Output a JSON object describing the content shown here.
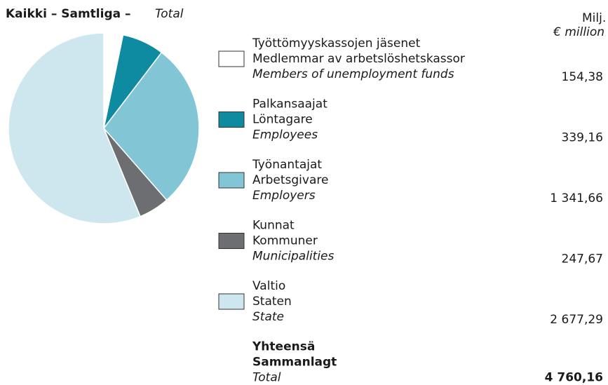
{
  "chart_data": {
    "type": "pie",
    "title": {
      "main": "Kaikki – Samtliga –",
      "en": "Total"
    },
    "unit": [
      "Milj. €",
      "€ million"
    ],
    "categories": [
      [
        "Työttömyyskassojen jäsenet",
        "Medlemmar av arbetslöshetskassor",
        "Members of unemployment funds"
      ],
      [
        "Palkansaajat",
        "Löntagare",
        "Employees"
      ],
      [
        "Työnantajat",
        "Arbetsgivare",
        "Employers"
      ],
      [
        "Kunnat",
        "Kommuner",
        "Municipalities"
      ],
      [
        "Valtio",
        "Staten",
        "State"
      ]
    ],
    "values": [
      154.38,
      339.16,
      1341.66,
      247.67,
      2677.29
    ],
    "value_labels": [
      "154,38",
      "339,16",
      "1 341,66",
      "247,67",
      "2 677,29"
    ],
    "colors": [
      "#ffffff",
      "#0e8ba0",
      "#82c6d5",
      "#6d6e71",
      "#cee7ef"
    ],
    "total": {
      "labels": [
        "Yhteensä",
        "Sammanlagt",
        "Total"
      ],
      "value": 4760.16,
      "value_label": "4 760,16"
    }
  }
}
